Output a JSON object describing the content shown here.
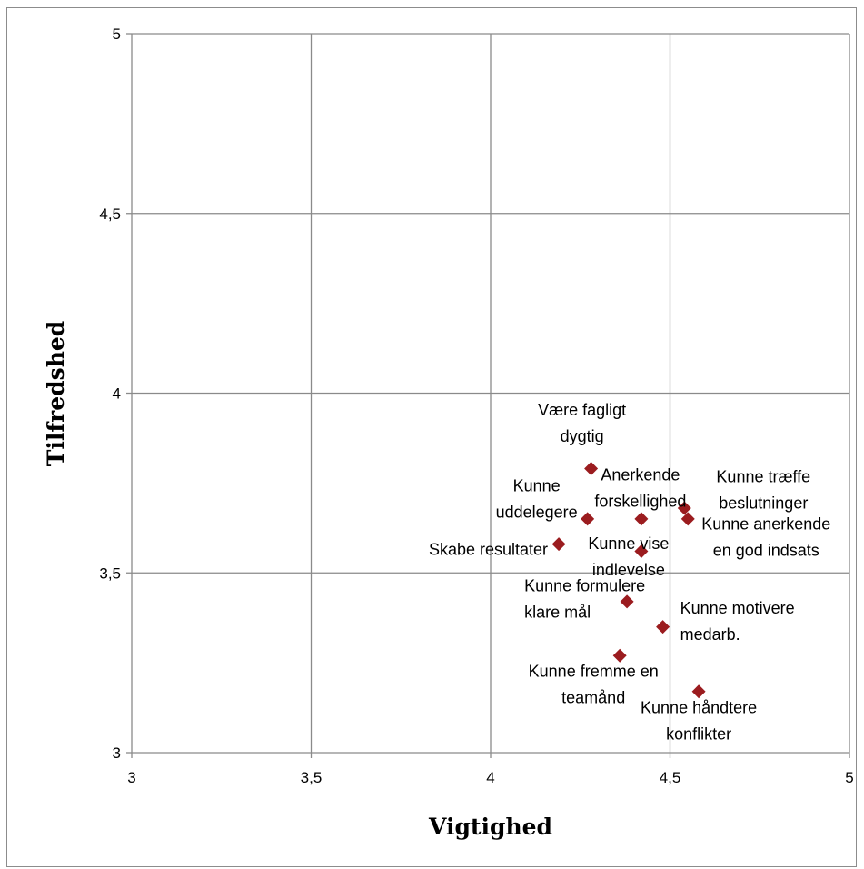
{
  "chart_data": {
    "type": "scatter",
    "xlabel": "Vigtighed",
    "ylabel": "Tilfredshed",
    "xlim": [
      3,
      5
    ],
    "ylim": [
      3,
      5
    ],
    "xticks": [
      "3",
      "3,5",
      "4",
      "4,5",
      "5"
    ],
    "yticks": [
      "3",
      "3,5",
      "4",
      "4,5",
      "5"
    ],
    "grid": true,
    "marker_color": "#9b1c1f",
    "points": [
      {
        "x": 4.28,
        "y": 3.79,
        "label": [
          "Være fagligt",
          "dygtig"
        ]
      },
      {
        "x": 4.27,
        "y": 3.65,
        "label": [
          "Kunne",
          "uddelegere"
        ]
      },
      {
        "x": 4.42,
        "y": 3.65,
        "label": [
          "Anerkende",
          "forskellighed"
        ]
      },
      {
        "x": 4.54,
        "y": 3.68,
        "label": [
          "Kunne træffe",
          "beslutninger"
        ]
      },
      {
        "x": 4.55,
        "y": 3.65,
        "label": [
          "Kunne anerkende",
          "en god indsats"
        ]
      },
      {
        "x": 4.19,
        "y": 3.58,
        "label": [
          "Skabe resultater"
        ]
      },
      {
        "x": 4.42,
        "y": 3.56,
        "label": [
          "Kunne vise",
          "indlevelse"
        ]
      },
      {
        "x": 4.38,
        "y": 3.42,
        "label": [
          "Kunne formulere",
          "klare mål"
        ]
      },
      {
        "x": 4.48,
        "y": 3.35,
        "label": [
          "Kunne motivere",
          "medarb."
        ]
      },
      {
        "x": 4.36,
        "y": 3.27,
        "label": [
          "Kunne fremme en",
          "teamånd"
        ]
      },
      {
        "x": 4.58,
        "y": 3.17,
        "label": [
          "Kunne håndtere",
          "konflikter"
        ]
      }
    ]
  }
}
